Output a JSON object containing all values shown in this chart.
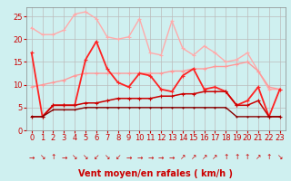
{
  "x": [
    0,
    1,
    2,
    3,
    4,
    5,
    6,
    7,
    8,
    9,
    10,
    11,
    12,
    13,
    14,
    15,
    16,
    17,
    18,
    19,
    20,
    21,
    22,
    23
  ],
  "series": [
    {
      "name": "rafales_max",
      "color": "#ffaaaa",
      "lw": 1.0,
      "ms": 2.5,
      "y": [
        22.5,
        21.0,
        21.0,
        22.0,
        25.5,
        26.0,
        24.5,
        20.5,
        20.0,
        20.5,
        24.5,
        17.0,
        16.5,
        24.0,
        18.0,
        16.5,
        18.5,
        17.0,
        15.0,
        15.5,
        17.0,
        13.0,
        9.0,
        9.0
      ]
    },
    {
      "name": "rafales_moy",
      "color": "#ff9999",
      "lw": 1.0,
      "ms": 2.5,
      "y": [
        9.5,
        10.0,
        10.5,
        11.0,
        12.0,
        12.5,
        12.5,
        12.5,
        12.5,
        12.5,
        12.5,
        12.5,
        12.5,
        13.0,
        13.0,
        13.5,
        13.5,
        14.0,
        14.0,
        14.5,
        15.0,
        13.0,
        9.5,
        9.0
      ]
    },
    {
      "name": "vent_max",
      "color": "#ff2222",
      "lw": 1.3,
      "ms": 3.0,
      "y": [
        17.0,
        3.0,
        5.5,
        5.5,
        5.5,
        15.5,
        19.5,
        13.5,
        10.5,
        9.5,
        12.5,
        12.0,
        9.0,
        8.5,
        12.0,
        13.5,
        9.0,
        9.5,
        8.5,
        5.5,
        6.5,
        9.5,
        3.0,
        9.0
      ]
    },
    {
      "name": "vent_moy",
      "color": "#cc0000",
      "lw": 1.1,
      "ms": 2.5,
      "y": [
        3.0,
        3.0,
        5.5,
        5.5,
        5.5,
        6.0,
        6.0,
        6.5,
        7.0,
        7.0,
        7.0,
        7.0,
        7.5,
        7.5,
        8.0,
        8.0,
        8.5,
        8.5,
        8.5,
        5.5,
        5.5,
        6.5,
        3.0,
        3.0
      ]
    },
    {
      "name": "vent_min",
      "color": "#880000",
      "lw": 1.0,
      "ms": 2.0,
      "y": [
        3.0,
        3.0,
        4.5,
        4.5,
        4.5,
        5.0,
        5.0,
        5.0,
        5.0,
        5.0,
        5.0,
        5.0,
        5.0,
        5.0,
        5.0,
        5.0,
        5.0,
        5.0,
        5.0,
        3.0,
        3.0,
        3.0,
        3.0,
        3.0
      ]
    }
  ],
  "wind_arrows": [
    "→",
    "↘",
    "↑",
    "→",
    "↘",
    "↘",
    "↙",
    "↘",
    "↙",
    "→",
    "→",
    "→",
    "→",
    "→",
    "↗",
    "↗",
    "↗",
    "↗",
    "↑",
    "↑",
    "↑",
    "↗",
    "↑",
    "↘"
  ],
  "xlabel": "Vent moyen/en rafales ( km/h )",
  "xlabel_color": "#cc0000",
  "xlabel_fontsize": 7,
  "bg_color": "#cff0f0",
  "grid_color": "#bbbbbb",
  "ylim": [
    0,
    27
  ],
  "yticks": [
    0,
    5,
    10,
    15,
    20,
    25
  ],
  "xticks": [
    0,
    1,
    2,
    3,
    4,
    5,
    6,
    7,
    8,
    9,
    10,
    11,
    12,
    13,
    14,
    15,
    16,
    17,
    18,
    19,
    20,
    21,
    22,
    23
  ],
  "tick_fontsize": 6,
  "tick_color": "#cc0000"
}
